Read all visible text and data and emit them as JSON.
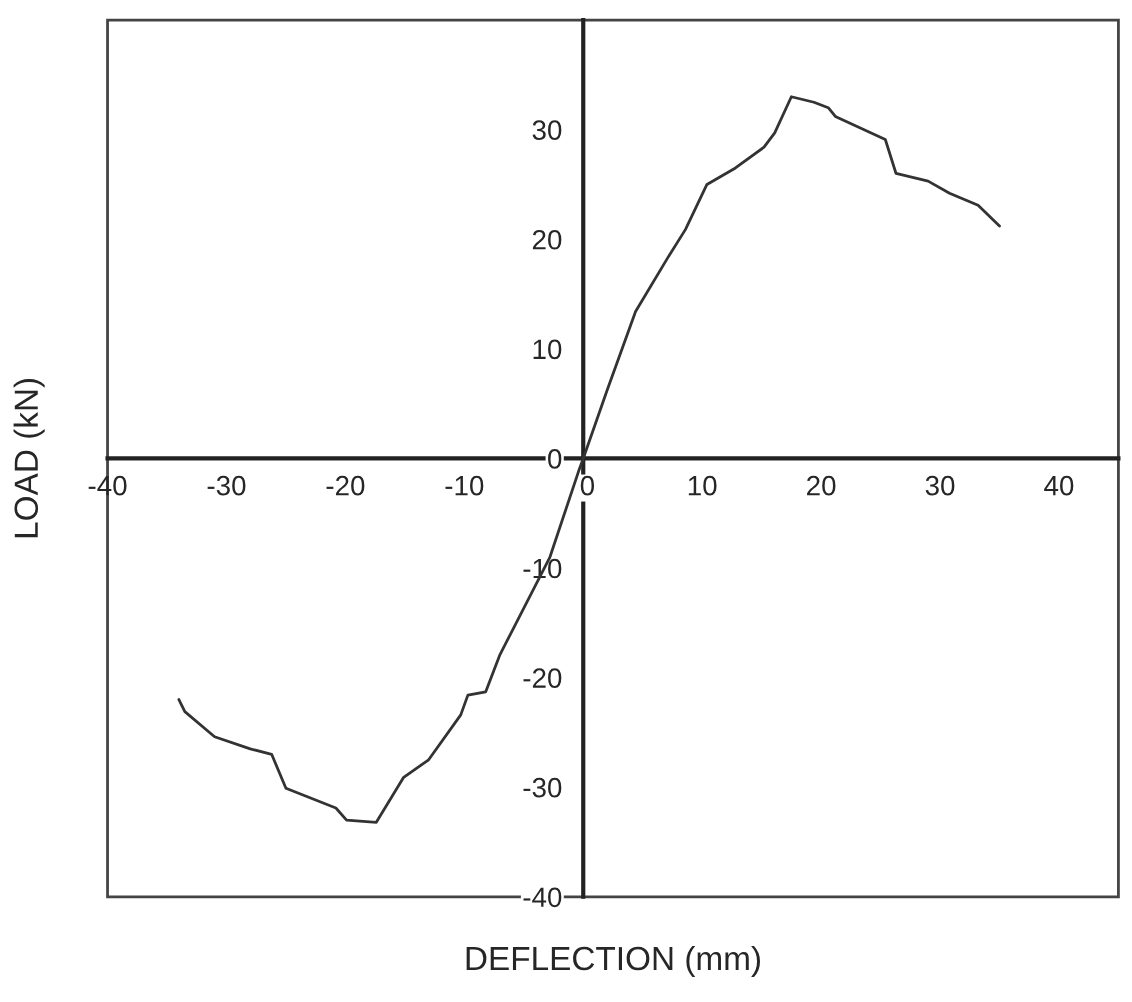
{
  "chart_data": {
    "type": "line",
    "xlabel": "DEFLECTION (mm)",
    "ylabel": "LOAD (kN)",
    "xlim": [
      -40,
      45
    ],
    "ylim": [
      -40,
      40
    ],
    "xticks": [
      -40,
      -30,
      -20,
      -10,
      0,
      10,
      20,
      30,
      40
    ],
    "yticks": [
      -40,
      -30,
      -20,
      -10,
      0,
      10,
      20,
      30
    ],
    "grid": false,
    "marker": "none",
    "line_style": "solid",
    "series": [
      {
        "color": "#333333",
        "x": [
          -34,
          -33.5,
          -31,
          -28,
          -26.2,
          -25,
          -20.8,
          -19.9,
          -17.4,
          -15.1,
          -13,
          -10.3,
          -9.7,
          -8.2,
          -7,
          -2.8,
          -0.4,
          0,
          2,
          4.4,
          7.1,
          8.6,
          10.4,
          12.8,
          15.2,
          16.1,
          17.5,
          19.4,
          20.6,
          21.2,
          25.4,
          26.3,
          29,
          30.8,
          33.2,
          35
        ],
        "values": [
          -22,
          -23.1,
          -25.4,
          -26.5,
          -27,
          -30.1,
          -31.9,
          -33,
          -33.2,
          -29.1,
          -27.5,
          -23.4,
          -21.6,
          -21.3,
          -17.9,
          -9,
          -1.2,
          0,
          6.2,
          13.4,
          18.3,
          20.9,
          25,
          26.5,
          28.4,
          29.7,
          33,
          32.5,
          32,
          31.2,
          29.1,
          26,
          25.3,
          24.2,
          23.1,
          21.2
        ]
      }
    ]
  }
}
